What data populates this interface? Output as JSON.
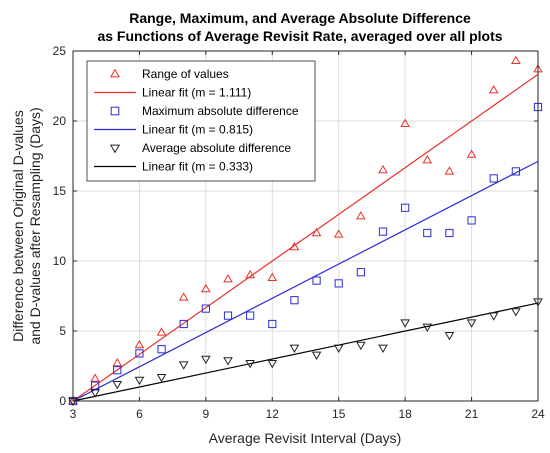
{
  "chart_data": {
    "type": "scatter",
    "title": "Range, Maximum, and Average Absolute Difference",
    "subtitle": "as Functions of Average Revisit Rate, averaged over all plots",
    "xlabel": "Average Revisit Interval (Days)",
    "ylabel_line1": "Difference between Original D-values",
    "ylabel_line2": "and D-values after Resampling (Days)",
    "xlim": [
      3,
      24
    ],
    "ylim": [
      0,
      25
    ],
    "xticks": [
      3,
      6,
      9,
      12,
      15,
      18,
      21,
      24
    ],
    "yticks": [
      0,
      5,
      10,
      15,
      20,
      25
    ],
    "grid": true,
    "legend_position": "top-left",
    "series": [
      {
        "name": "Range of values",
        "marker": "triangle-up",
        "color": "#e8312a",
        "x": [
          3,
          4,
          5,
          6,
          7,
          8,
          9,
          10,
          11,
          12,
          13,
          14,
          15,
          16,
          17,
          18,
          19,
          20,
          21,
          22,
          23,
          24
        ],
        "y": [
          0,
          1.6,
          2.7,
          4.0,
          4.9,
          7.4,
          8.0,
          8.7,
          9.0,
          8.8,
          11.0,
          12.0,
          11.9,
          13.2,
          16.5,
          19.8,
          17.2,
          16.4,
          17.6,
          22.2,
          24.3,
          23.7
        ]
      },
      {
        "name": "Linear fit (m = 1.111)",
        "type": "line",
        "color": "#e8312a",
        "slope": 1.111,
        "x": [
          3,
          24
        ],
        "y": [
          0,
          23.33
        ]
      },
      {
        "name": "Maximum absolute difference",
        "marker": "square",
        "color": "#2b2bd6",
        "x": [
          3,
          4,
          5,
          6,
          7,
          8,
          9,
          10,
          11,
          12,
          13,
          14,
          15,
          16,
          17,
          18,
          19,
          20,
          21,
          22,
          23,
          24
        ],
        "y": [
          0,
          1.1,
          2.2,
          3.4,
          3.7,
          5.5,
          6.6,
          6.1,
          6.1,
          5.5,
          7.2,
          8.6,
          8.4,
          9.2,
          12.1,
          13.8,
          12.0,
          12.0,
          12.9,
          15.9,
          16.4,
          21.0
        ]
      },
      {
        "name": "Linear fit (m = 0.815)",
        "type": "line",
        "color": "#2b2bd6",
        "slope": 0.815,
        "x": [
          3,
          24
        ],
        "y": [
          0,
          17.115
        ]
      },
      {
        "name": "Average absolute difference",
        "marker": "triangle-down",
        "color": "#222222",
        "x": [
          3,
          4,
          5,
          6,
          7,
          8,
          9,
          10,
          11,
          12,
          13,
          14,
          15,
          16,
          17,
          18,
          19,
          20,
          21,
          22,
          23,
          24
        ],
        "y": [
          0,
          0.6,
          1.2,
          1.5,
          1.7,
          2.6,
          3.0,
          2.9,
          2.7,
          2.7,
          3.8,
          3.3,
          3.8,
          4.0,
          3.8,
          5.6,
          5.3,
          4.7,
          5.6,
          6.1,
          6.4,
          7.1
        ]
      },
      {
        "name": "Linear fit (m = 0.333)",
        "type": "line",
        "color": "#000000",
        "slope": 0.333,
        "x": [
          3,
          24
        ],
        "y": [
          0,
          6.993
        ]
      }
    ]
  }
}
